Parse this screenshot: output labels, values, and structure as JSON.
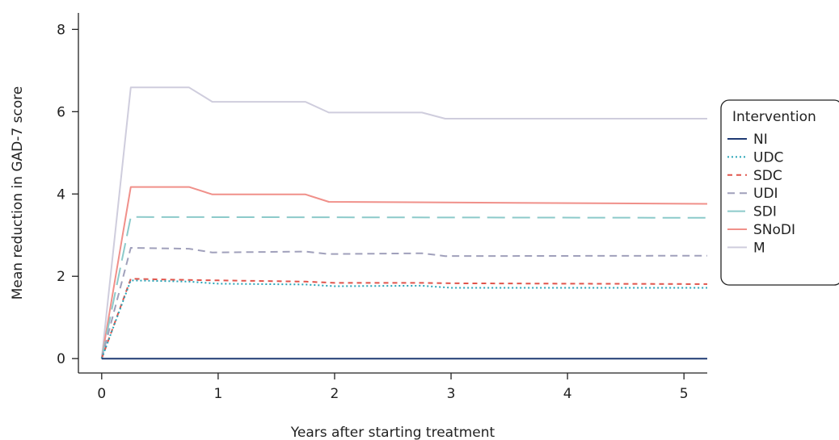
{
  "chart_data": {
    "type": "line",
    "xlabel": "Years after starting treatment",
    "ylabel": "Mean reduction in GAD-7 score",
    "xlim": [
      -0.2,
      5.2
    ],
    "ylim": [
      -0.35,
      8.4
    ],
    "xticks": [
      0,
      1,
      2,
      3,
      4,
      5
    ],
    "yticks": [
      0,
      2,
      4,
      6,
      8
    ],
    "grid": false,
    "legend": {
      "title": "Intervention",
      "placement": "right"
    },
    "series": [
      {
        "name": "NI",
        "color": "#1f3a73",
        "dash": "solid",
        "x": [
          0,
          0.25,
          5.2
        ],
        "y": [
          0,
          0,
          0
        ]
      },
      {
        "name": "UDC",
        "color": "#2aa5b8",
        "dash": "dotted",
        "x": [
          0,
          0.25,
          0.75,
          1.0,
          1.75,
          2.0,
          2.75,
          3.0,
          5.2
        ],
        "y": [
          0,
          1.9,
          1.87,
          1.82,
          1.8,
          1.76,
          1.77,
          1.72,
          1.72
        ]
      },
      {
        "name": "SDC",
        "color": "#e0554c",
        "dash": "short-dash",
        "x": [
          0,
          0.25,
          0.75,
          1.0,
          1.75,
          2.0,
          2.75,
          3.0,
          5.2
        ],
        "y": [
          0,
          1.94,
          1.91,
          1.9,
          1.87,
          1.84,
          1.84,
          1.83,
          1.81
        ]
      },
      {
        "name": "UDI",
        "color": "#a0a0bb",
        "dash": "dashed",
        "x": [
          0,
          0.25,
          0.75,
          0.95,
          1.75,
          1.95,
          2.75,
          2.95,
          5.2
        ],
        "y": [
          0,
          2.69,
          2.67,
          2.58,
          2.6,
          2.54,
          2.56,
          2.49,
          2.5
        ]
      },
      {
        "name": "SDI",
        "color": "#8ccaca",
        "dash": "long-dash",
        "x": [
          0,
          0.25,
          5.2
        ],
        "y": [
          0,
          3.44,
          3.42
        ]
      },
      {
        "name": "SNoDI",
        "color": "#f0908a",
        "dash": "solid",
        "x": [
          0,
          0.25,
          0.75,
          0.95,
          1.75,
          1.95,
          5.2
        ],
        "y": [
          0,
          4.17,
          4.17,
          3.99,
          3.99,
          3.81,
          3.76
        ]
      },
      {
        "name": "M",
        "color": "#cfcddd",
        "dash": "solid",
        "x": [
          0,
          0.25,
          0.75,
          0.95,
          1.75,
          1.95,
          2.75,
          2.95,
          5.2
        ],
        "y": [
          0,
          6.59,
          6.59,
          6.24,
          6.24,
          5.98,
          5.98,
          5.83,
          5.83
        ]
      }
    ]
  }
}
